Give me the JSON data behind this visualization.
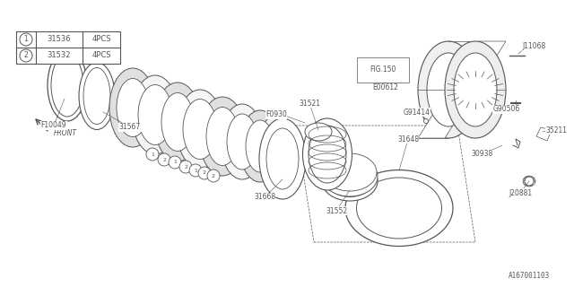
{
  "bg_color": "#ffffff",
  "line_color": "#555555",
  "table": {
    "items": [
      {
        "symbol": "1",
        "part": "31536",
        "qty": "4PCS"
      },
      {
        "symbol": "2",
        "part": "31532",
        "qty": "4PCS"
      }
    ]
  },
  "part_number": "A167001103"
}
